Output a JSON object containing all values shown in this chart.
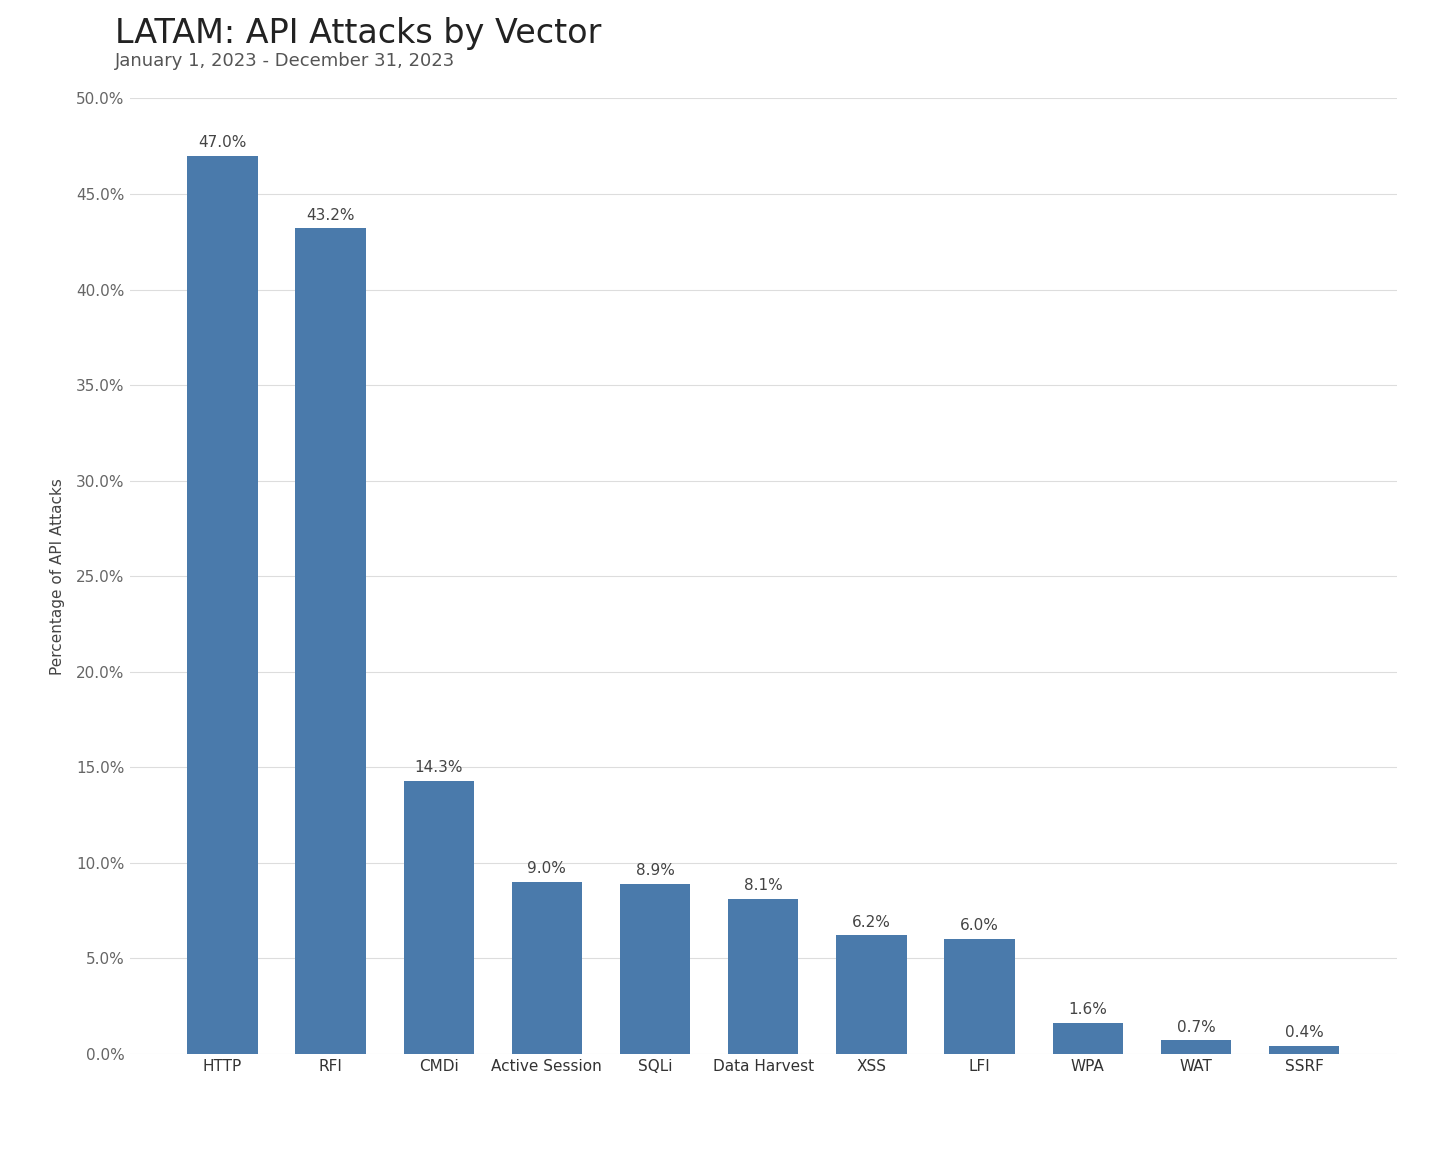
{
  "title": "LATAM: API Attacks by Vector",
  "subtitle": "January 1, 2023 - December 31, 2023",
  "categories": [
    "HTTP",
    "RFI",
    "CMDi",
    "Active Session",
    "SQLi",
    "Data Harvest",
    "XSS",
    "LFI",
    "WPA",
    "WAT",
    "SSRF"
  ],
  "values": [
    47.0,
    43.2,
    14.3,
    9.0,
    8.9,
    8.1,
    6.2,
    6.0,
    1.6,
    0.7,
    0.4
  ],
  "bar_color": "#4a7aab",
  "ylabel": "Percentage of API Attacks",
  "ylim": [
    0,
    50
  ],
  "yticks": [
    0,
    5,
    10,
    15,
    20,
    25,
    30,
    35,
    40,
    45,
    50
  ],
  "background_color": "#ffffff",
  "grid_color": "#dddddd",
  "title_fontsize": 24,
  "subtitle_fontsize": 13,
  "ylabel_fontsize": 11,
  "tick_fontsize": 11,
  "label_fontsize": 11
}
